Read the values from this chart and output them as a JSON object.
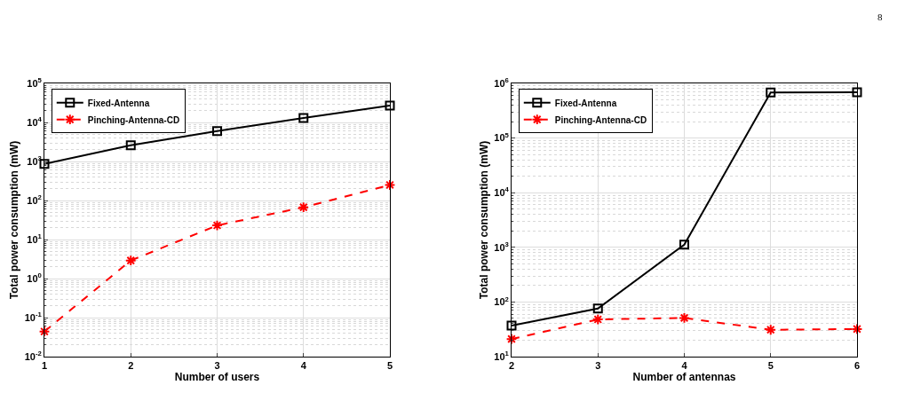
{
  "chart_data": [
    {
      "type": "line",
      "xlabel": "Number of users",
      "ylabel": "Total power consumption (mW)",
      "x": [
        1,
        2,
        3,
        4,
        5
      ],
      "xlim": [
        1,
        5
      ],
      "xticks": [
        1,
        2,
        3,
        4,
        5
      ],
      "ylim": [
        0.01,
        100000
      ],
      "log": "y",
      "grid": true,
      "legend": "top left",
      "yticks": [
        {
          "value": 0.01,
          "label": "10$^{-2}$"
        },
        {
          "value": 0.1,
          "label": "10$^{-1}$"
        },
        {
          "value": 1,
          "label": "10$^{0}$"
        },
        {
          "value": 10,
          "label": "10$^{1}$"
        },
        {
          "value": 100,
          "label": "10$^{2}$"
        },
        {
          "value": 1000,
          "label": "10$^{3}$"
        },
        {
          "value": 10000,
          "label": "10$^{4}$"
        },
        {
          "value": 100000,
          "label": "10$^{5}$"
        }
      ],
      "series": [
        {
          "name": "Fixed-Antenna",
          "color": "#000000",
          "marker": "square",
          "line_style": "solid",
          "values": [
            870,
            2600,
            6000,
            13000,
            27000
          ]
        },
        {
          "name": "Pinching-Antenna-CD",
          "color": "#ff0000",
          "marker": "cross",
          "line_style": "dashed",
          "values": [
            0.044,
            2.9,
            23,
            67,
            250
          ]
        }
      ]
    },
    {
      "type": "line",
      "xlabel": "Number of antennas",
      "ylabel": "Total power consumption (mW)",
      "x": [
        2,
        3,
        4,
        5,
        6
      ],
      "xlim": [
        2,
        6
      ],
      "xticks": [
        2,
        3,
        4,
        5,
        6
      ],
      "ylim": [
        10,
        1000000
      ],
      "log": "y",
      "grid": true,
      "legend": "top left",
      "yticks": [
        {
          "value": 10,
          "label": "10$^{1}$"
        },
        {
          "value": 100,
          "label": "10$^{2}$"
        },
        {
          "value": 1000,
          "label": "10$^{3}$"
        },
        {
          "value": 10000,
          "label": "10$^{4}$"
        },
        {
          "value": 100000,
          "label": "10$^{5}$"
        },
        {
          "value": 1000000,
          "label": "10$^{6}$"
        }
      ],
      "annotations": [
        "8"
      ],
      "series": [
        {
          "name": "Fixed-Antenna",
          "color": "#000000",
          "marker": "square",
          "line_style": "solid",
          "values": [
            37,
            76,
            1120,
            680000,
            690000
          ]
        },
        {
          "name": "Pinching-Antenna-CD",
          "color": "#ff0000",
          "marker": "cross",
          "line_style": "dashed",
          "values": [
            21,
            48,
            51,
            31,
            32
          ]
        }
      ]
    }
  ]
}
